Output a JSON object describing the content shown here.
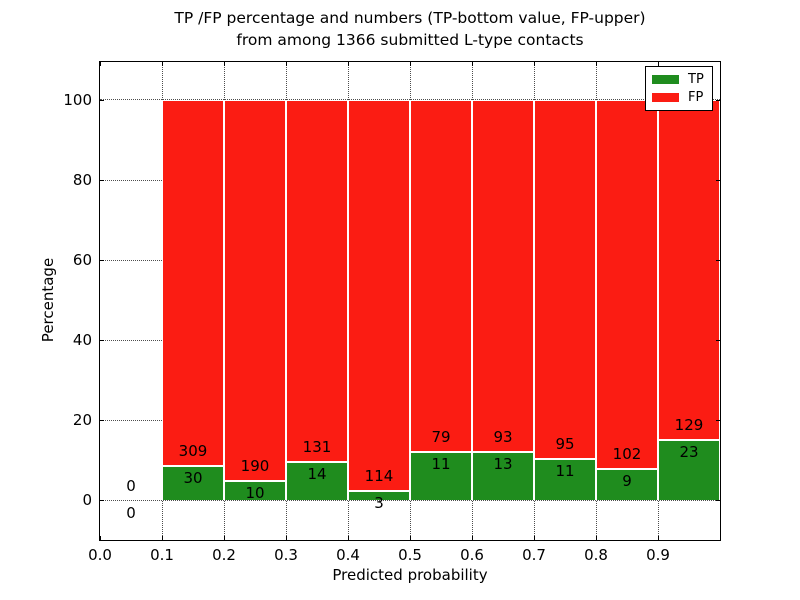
{
  "chart_data": {
    "type": "bar",
    "stacked": true,
    "title_lines": [
      "TP /FP percentage and numbers (TP-bottom value, FP-upper)",
      "from among 1366 submitted L-type contacts"
    ],
    "xlabel": "Predicted probability",
    "ylabel": "Percentage",
    "x_ticks": [
      "0.0",
      "0.1",
      "0.2",
      "0.3",
      "0.4",
      "0.5",
      "0.6",
      "0.7",
      "0.8",
      "0.9"
    ],
    "y_ticks": [
      0,
      20,
      40,
      60,
      80,
      100
    ],
    "xlim": [
      0.0,
      1.0
    ],
    "ylim": [
      -10,
      110
    ],
    "bin_width": 0.1,
    "grid": true,
    "bar_total_pct": 100,
    "total_contacts": 1366,
    "colors": {
      "tp": "#1f8c1e",
      "fp": "#fb1c13"
    },
    "legend": {
      "position": "upper right",
      "entries": [
        {
          "label": "TP",
          "color": "#1f8c1e"
        },
        {
          "label": "FP",
          "color": "#fb1c13"
        }
      ]
    },
    "bins": [
      {
        "x_start": 0.0,
        "tp": 0,
        "fp": 0
      },
      {
        "x_start": 0.1,
        "tp": 30,
        "fp": 309
      },
      {
        "x_start": 0.2,
        "tp": 10,
        "fp": 190
      },
      {
        "x_start": 0.3,
        "tp": 14,
        "fp": 131
      },
      {
        "x_start": 0.4,
        "tp": 3,
        "fp": 114
      },
      {
        "x_start": 0.5,
        "tp": 11,
        "fp": 79
      },
      {
        "x_start": 0.6,
        "tp": 13,
        "fp": 93
      },
      {
        "x_start": 0.7,
        "tp": 11,
        "fp": 95
      },
      {
        "x_start": 0.8,
        "tp": 9,
        "fp": 102
      },
      {
        "x_start": 0.9,
        "tp": 23,
        "fp": 129
      }
    ]
  }
}
